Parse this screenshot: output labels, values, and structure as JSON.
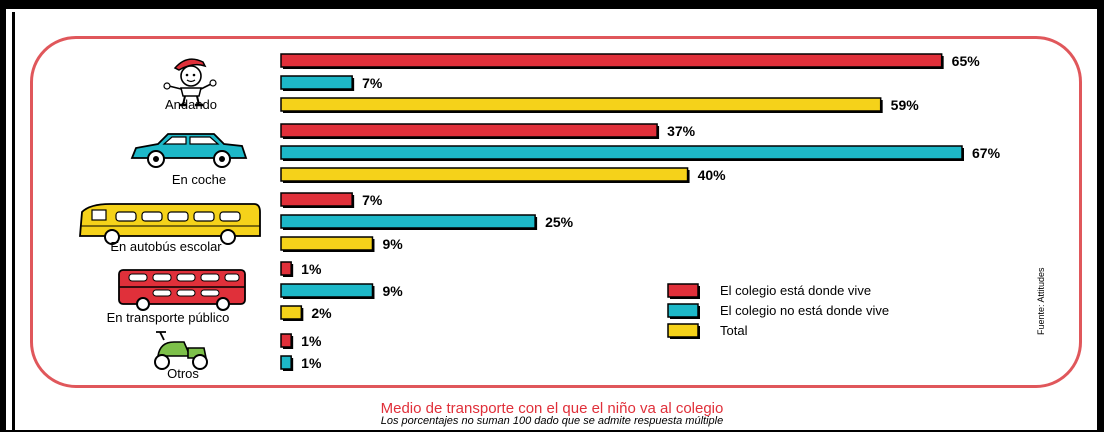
{
  "chart_data": {
    "type": "bar",
    "orientation": "horizontal",
    "title": "Medio de transporte con el que el niño va al colegio",
    "subtitle": "Los porcentajes no suman 100 dado que se admite respuesta múltiple",
    "source": "Fuente: Attitudes",
    "categories": [
      "Andando",
      "En coche",
      "En autobús escolar",
      "En transporte público",
      "Otros"
    ],
    "series": [
      {
        "name": "El colegio está donde vive",
        "color": "#e0303a",
        "values": [
          65,
          37,
          7,
          1,
          1
        ],
        "labels": [
          "65%",
          "37%",
          "7%",
          "1%",
          "1%"
        ]
      },
      {
        "name": "El colegio no está donde vive",
        "color": "#1db8c8",
        "values": [
          7,
          67,
          25,
          9,
          1
        ],
        "labels": [
          "7%",
          "67%",
          "25%",
          "9%",
          "1%"
        ]
      },
      {
        "name": "Total",
        "color": "#f5d21a",
        "values": [
          59,
          40,
          9,
          2,
          null
        ],
        "labels": [
          "59%",
          "40%",
          "9%",
          "2%",
          ""
        ]
      }
    ],
    "xlim": [
      0,
      67
    ],
    "grid": false,
    "legend_position": "right"
  },
  "icons": [
    "walking-boy-icon",
    "car-icon",
    "school-bus-icon",
    "double-decker-bus-icon",
    "scooter-icon"
  ]
}
